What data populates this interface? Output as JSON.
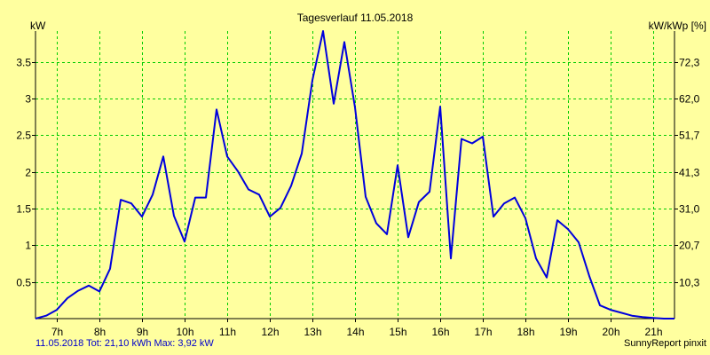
{
  "chart_data": {
    "type": "line",
    "title": "Tagesverlauf 11.05.2018",
    "ylabel_left": "kW",
    "ylabel_right": "kW/kWp [%]",
    "x_tick_labels": [
      "7h",
      "8h",
      "9h",
      "10h",
      "11h",
      "12h",
      "13h",
      "14h",
      "15h",
      "16h",
      "17h",
      "18h",
      "19h",
      "20h",
      "21h"
    ],
    "x_range": [
      6.5,
      21.5
    ],
    "ylim": [
      0,
      3.92
    ],
    "y_left_ticks": [
      "0.5",
      "1",
      "1.5",
      "2",
      "2.5",
      "3",
      "3.5"
    ],
    "y_right_ticks": [
      "10,3",
      "20,7",
      "31,0",
      "41,3",
      "51,7",
      "62,0",
      "72,3"
    ],
    "grid": true,
    "line_color": "#0000dd",
    "series": [
      {
        "x": [
          6.5,
          6.75,
          7.0,
          7.25,
          7.5,
          7.75,
          8.0,
          8.25,
          8.5,
          8.75,
          9.0,
          9.25,
          9.5,
          9.75,
          10.0,
          10.25,
          10.5,
          10.75,
          11.0,
          11.25,
          11.5,
          11.75,
          12.0,
          12.25,
          12.5,
          12.75,
          13.0,
          13.25,
          13.5,
          13.75,
          14.0,
          14.25,
          14.5,
          14.75,
          15.0,
          15.25,
          15.5,
          15.75,
          16.0,
          16.25,
          16.5,
          16.75,
          17.0,
          17.25,
          17.5,
          17.75,
          18.0,
          18.25,
          18.5,
          18.75,
          19.0,
          19.25,
          19.5,
          19.75,
          20.0,
          20.25,
          20.5,
          20.75,
          21.0,
          21.25,
          21.5
        ],
        "values": [
          0.0,
          0.04,
          0.12,
          0.28,
          0.38,
          0.45,
          0.37,
          0.68,
          1.62,
          1.57,
          1.39,
          1.69,
          2.21,
          1.4,
          1.05,
          1.65,
          1.65,
          2.85,
          2.21,
          2.01,
          1.76,
          1.69,
          1.39,
          1.51,
          1.81,
          2.25,
          3.25,
          3.92,
          2.93,
          3.77,
          2.88,
          1.66,
          1.3,
          1.15,
          2.09,
          1.11,
          1.59,
          1.73,
          2.89,
          0.82,
          2.45,
          2.39,
          2.48,
          1.39,
          1.57,
          1.65,
          1.37,
          0.82,
          0.56,
          1.34,
          1.22,
          1.04,
          0.58,
          0.18,
          0.12,
          0.08,
          0.04,
          0.02,
          0.01,
          0.0,
          0.0
        ]
      }
    ]
  },
  "footer": {
    "left": "11.05.2018 Tot: 21,10 kWh Max: 3,92 kW",
    "right": "SunnyReport pinxit"
  }
}
